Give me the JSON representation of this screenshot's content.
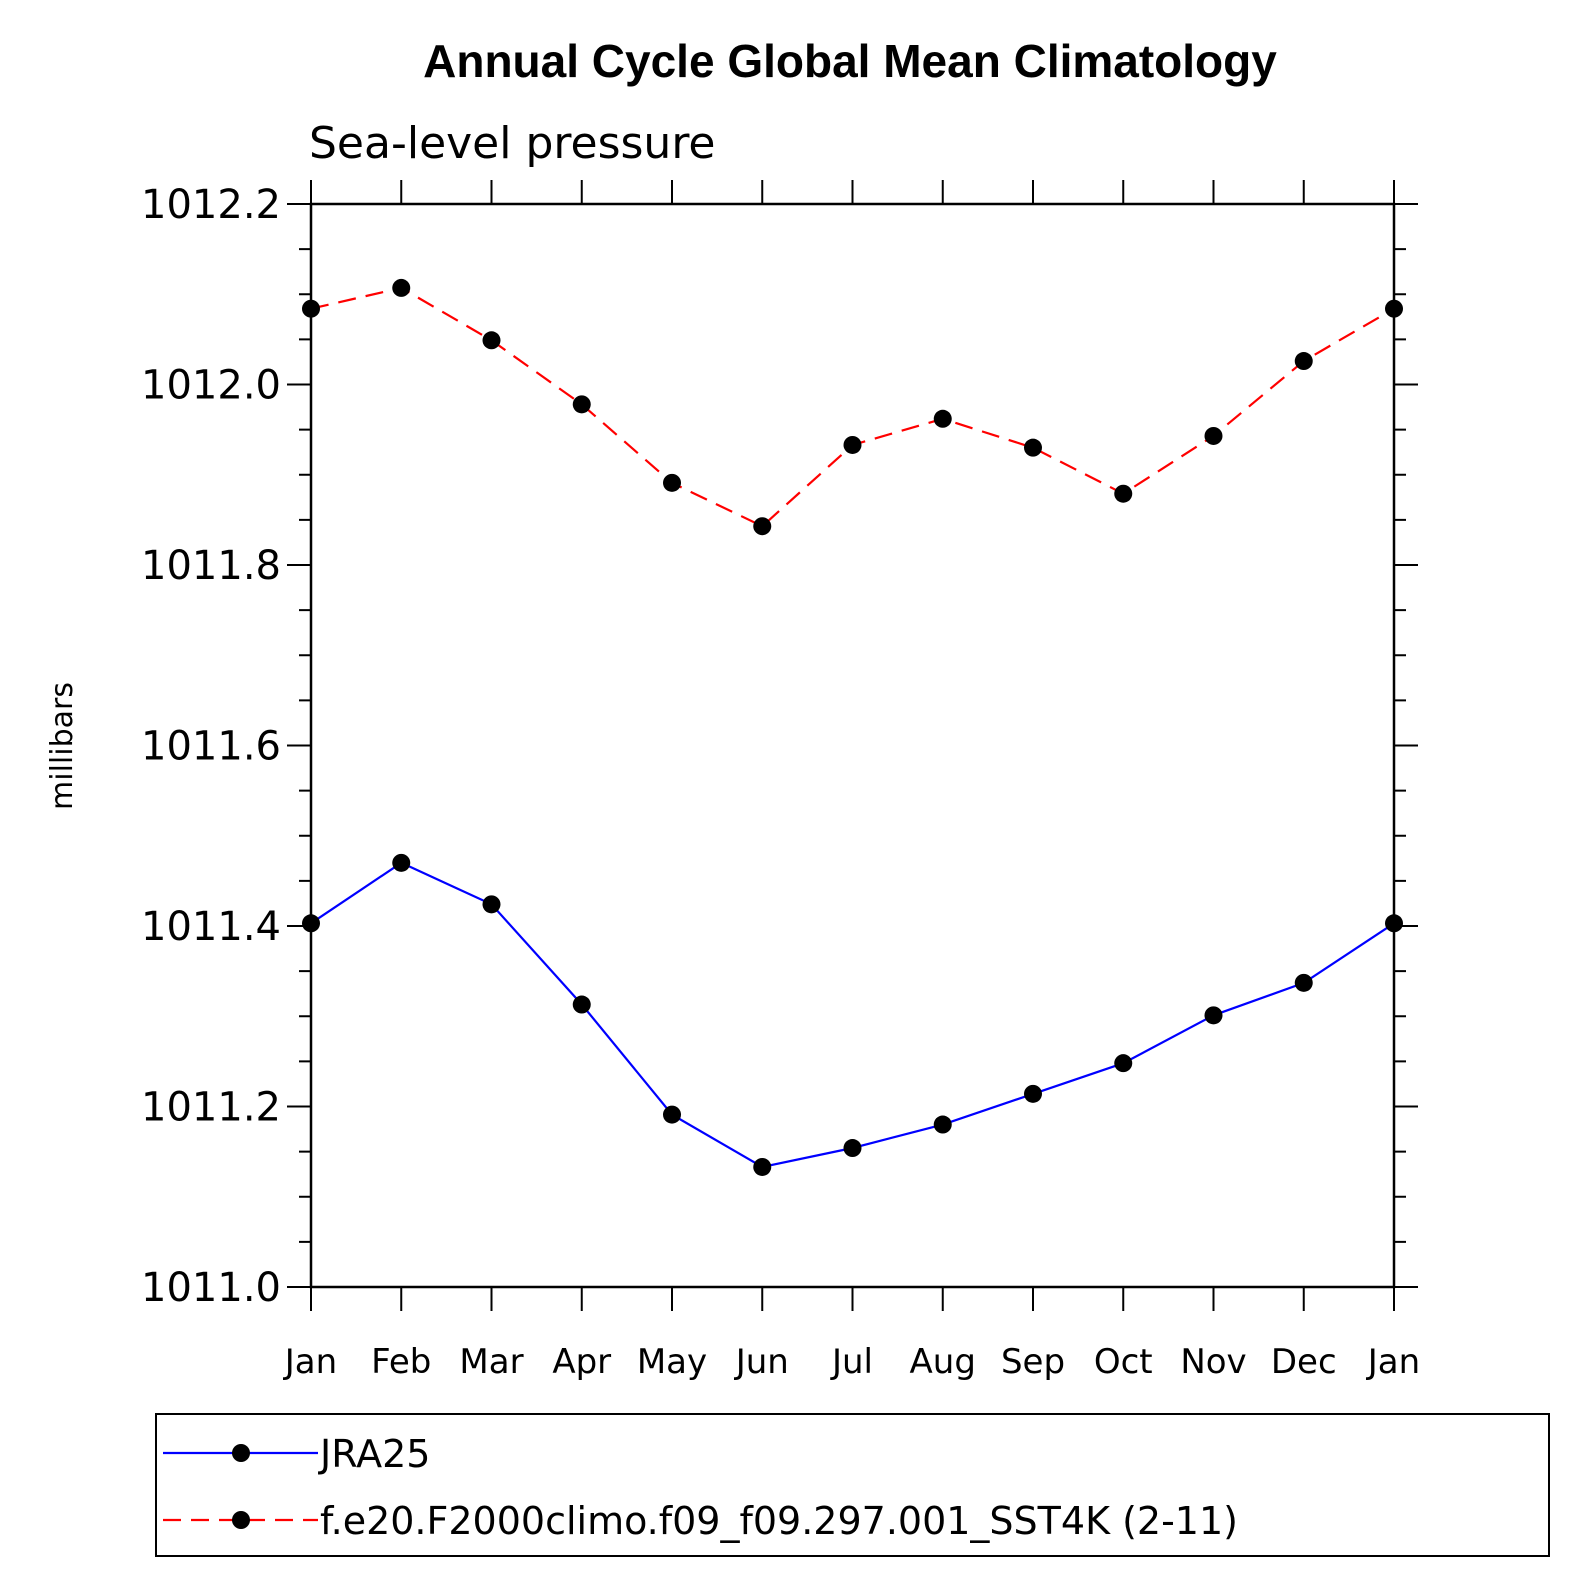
{
  "chart_data": {
    "type": "line",
    "title": "Annual Cycle Global Mean Climatology",
    "subtitle": "Sea-level pressure",
    "ylabel": "millibars",
    "xlabel": "",
    "categories": [
      "Jan",
      "Feb",
      "Mar",
      "Apr",
      "May",
      "Jun",
      "Jul",
      "Aug",
      "Sep",
      "Oct",
      "Nov",
      "Dec",
      "Jan"
    ],
    "ylim": [
      1011.0,
      1012.2
    ],
    "yticks": [
      "1011.0",
      "1011.2",
      "1011.4",
      "1011.6",
      "1011.8",
      "1012.0",
      "1012.2"
    ],
    "grid": false,
    "legend_position": "bottom",
    "series": [
      {
        "name": "JRA25",
        "color": "#0000ff",
        "dash": "solid",
        "marker": "filled-circle",
        "values": [
          1011.403,
          1011.47,
          1011.424,
          1011.313,
          1011.191,
          1011.133,
          1011.154,
          1011.18,
          1011.214,
          1011.248,
          1011.301,
          1011.337,
          1011.403
        ]
      },
      {
        "name": "f.e20.F2000climo.f09_f09.297.001_SST4K (2-11)",
        "color": "#ff0000",
        "dash": "dashed",
        "marker": "filled-circle",
        "values": [
          1012.084,
          1012.107,
          1012.049,
          1011.978,
          1011.891,
          1011.843,
          1011.933,
          1011.962,
          1011.93,
          1011.879,
          1011.943,
          1012.026,
          1012.084
        ]
      }
    ]
  }
}
